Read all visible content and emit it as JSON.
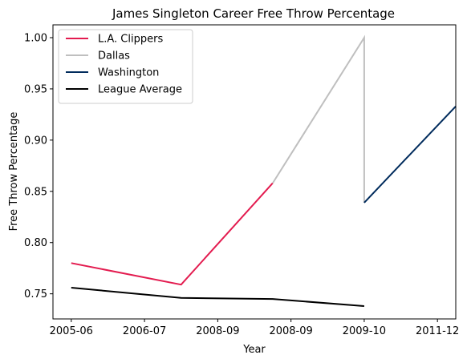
{
  "chart_data": {
    "type": "line",
    "title": "James Singleton  Career Free Throw Percentage",
    "xlabel": "Year",
    "ylabel": "Free Throw Percentage",
    "x_ticks": [
      "2005-06",
      "2006-07",
      "2008-09",
      "2008-09",
      "2009-10",
      "2011-12"
    ],
    "y_ticks": [
      "0.75",
      "0.80",
      "0.85",
      "0.90",
      "0.95",
      "1.00"
    ],
    "xlim": [
      -0.2,
      4.2
    ],
    "ylim": [
      0.7255,
      1.0125
    ],
    "grid": false,
    "legend_position": "upper-left",
    "series": [
      {
        "name": "L.A. Clippers",
        "color": "#e31b4f",
        "x": [
          0,
          1.2,
          2.2
        ],
        "y": [
          0.78,
          0.759,
          0.858
        ]
      },
      {
        "name": "Dallas",
        "color": "#bfbfbf",
        "x": [
          2.2,
          3.2,
          3.2
        ],
        "y": [
          0.858,
          1.0,
          0.839
        ]
      },
      {
        "name": "Washington",
        "color": "#002b5c",
        "x": [
          3.2,
          4.2
        ],
        "y": [
          0.839,
          0.933
        ]
      },
      {
        "name": "League Average",
        "color": "#000000",
        "x": [
          0,
          1.2,
          2.2,
          3.2
        ],
        "y": [
          0.756,
          0.746,
          0.745,
          0.738
        ]
      }
    ]
  }
}
